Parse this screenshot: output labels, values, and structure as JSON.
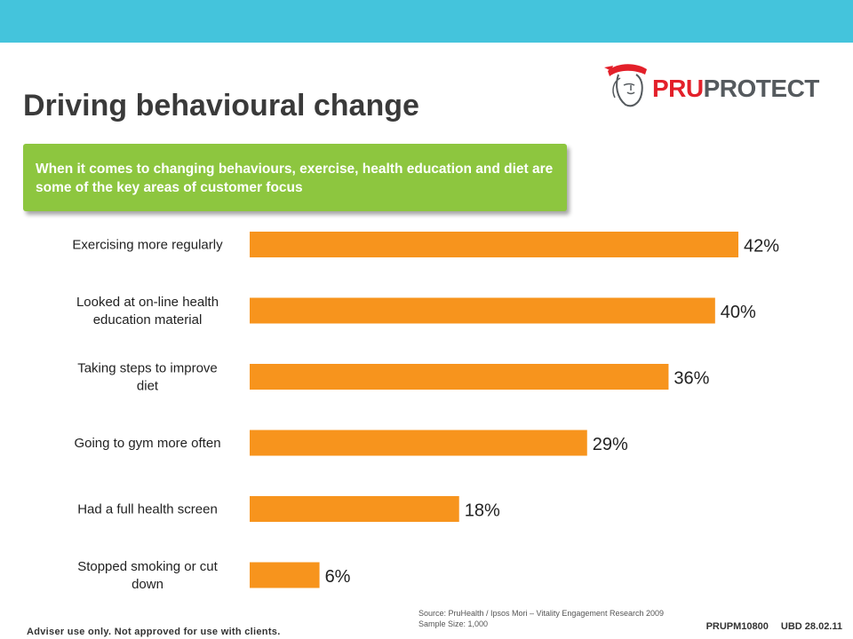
{
  "header": {
    "title": "Driving behavioural change",
    "logo": {
      "prefix": "PRU",
      "suffix": "PROTECT",
      "icon": "helmeted-head-icon"
    }
  },
  "banner": {
    "text": "When it comes to changing behaviours, exercise, health education and diet are some of the key areas of customer focus"
  },
  "colors": {
    "top_band": "#44c4dc",
    "banner": "#8dc63f",
    "bar": "#f7941d",
    "brand_red": "#e3202a"
  },
  "chart_data": {
    "type": "bar",
    "orientation": "horizontal",
    "categories": [
      [
        "Exercising more regularly"
      ],
      [
        "Looked at on-line health",
        "education material"
      ],
      [
        "Taking steps to improve",
        "diet"
      ],
      [
        "Going to gym more often"
      ],
      [
        "Had a full health screen"
      ],
      [
        "Stopped smoking or cut",
        "down"
      ]
    ],
    "values": [
      42,
      40,
      36,
      29,
      18,
      6
    ],
    "value_labels": [
      "42%",
      "40%",
      "36%",
      "29%",
      "18%",
      "6%"
    ],
    "grid": false,
    "legend": "none"
  },
  "source": {
    "line1": "Source: PruHealth / Ipsos Mori – Vitality Engagement Research 2009",
    "line2": "Sample Size: 1,000"
  },
  "footer": {
    "disclaimer": "Adviser use only. Not approved for use with clients.",
    "code": "PRUPM10800",
    "date": "UBD 28.02.11"
  }
}
